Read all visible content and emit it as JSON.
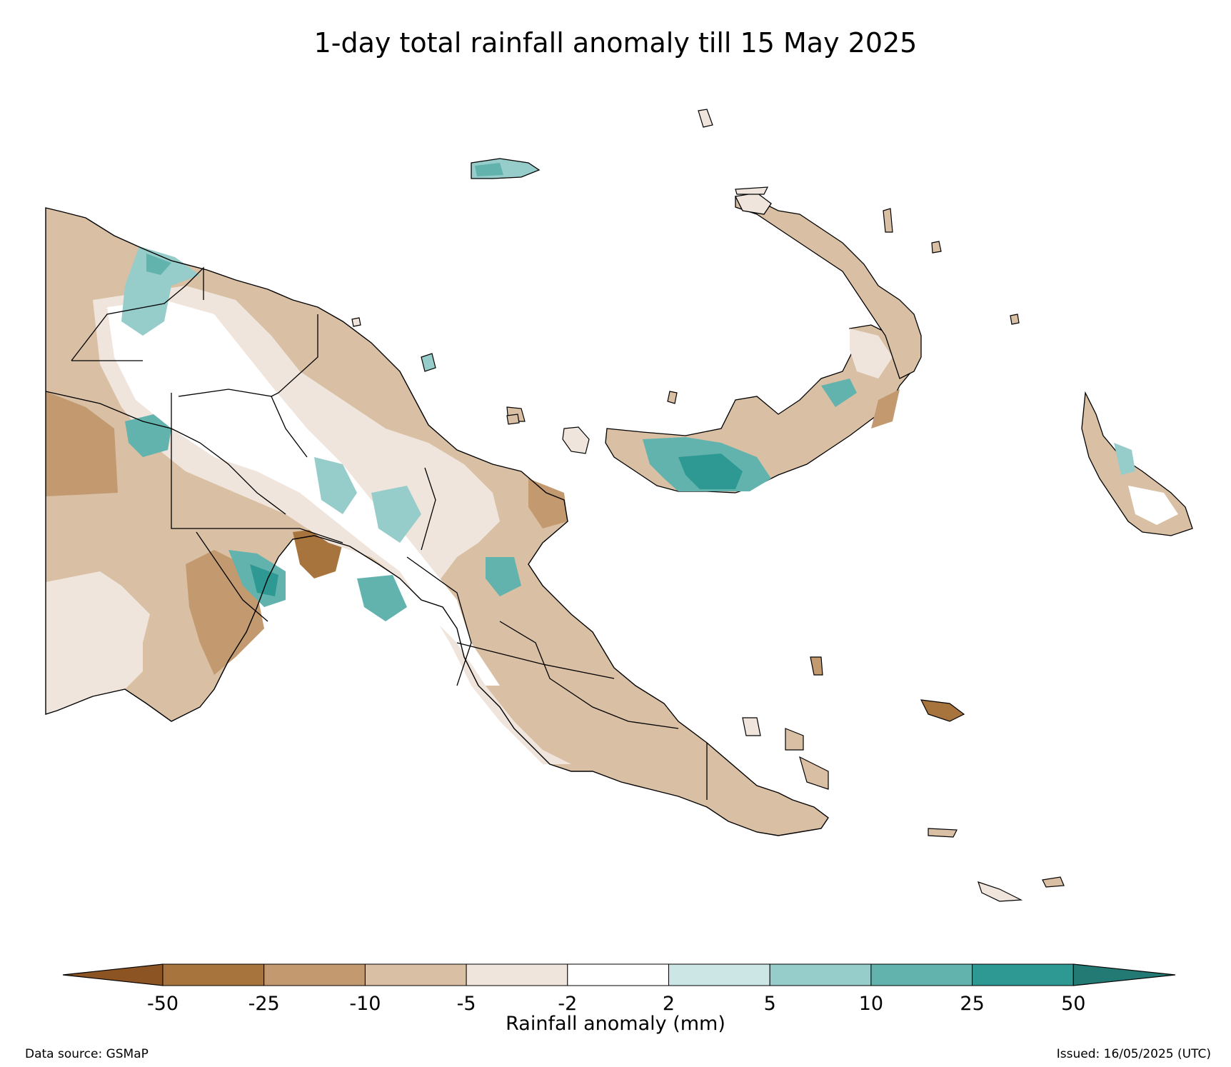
{
  "title": "1-day total rainfall anomaly till 15 May 2025",
  "colorbar": {
    "label": "Rainfall anomaly (mm)",
    "ticks": [
      "-50",
      "-25",
      "-10",
      "-5",
      "-2",
      "2",
      "5",
      "10",
      "25",
      "50"
    ],
    "bins": [
      {
        "range": "< -50",
        "color": "#8c5423"
      },
      {
        "range": "-50 to -25",
        "color": "#a8743d"
      },
      {
        "range": "-25 to -10",
        "color": "#c39a6f"
      },
      {
        "range": "-10 to -5",
        "color": "#d9bfa3"
      },
      {
        "range": "-5 to -2",
        "color": "#f0e5dc"
      },
      {
        "range": "-2 to 2",
        "color": "#ffffff"
      },
      {
        "range": "2 to 5",
        "color": "#cbe6e4"
      },
      {
        "range": "5 to 10",
        "color": "#96cdca"
      },
      {
        "range": "10 to 25",
        "color": "#62b3ae"
      },
      {
        "range": "25 to 50",
        "color": "#2e9993"
      },
      {
        "range": "> 50",
        "color": "#237a75"
      }
    ]
  },
  "footer": {
    "source": "Data source: GSMaP",
    "issued": "Issued: 16/05/2025 (UTC)"
  }
}
